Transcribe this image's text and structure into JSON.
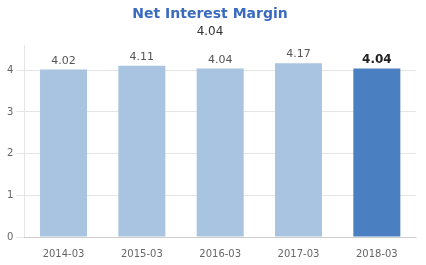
{
  "chart_data": {
    "type": "bar",
    "title": "Net Interest Margin",
    "subtitle": "4.04",
    "categories": [
      "2014-03",
      "2015-03",
      "2016-03",
      "2017-03",
      "2018-03"
    ],
    "values": [
      4.02,
      4.11,
      4.04,
      4.17,
      4.04
    ],
    "colors": [
      "#a8c4e0",
      "#a8c4e0",
      "#a8c4e0",
      "#a8c4e0",
      "#4a7fc1"
    ],
    "ylim": [
      0,
      4.6
    ],
    "yticks": [
      0,
      1,
      2,
      3,
      4
    ],
    "grid": true,
    "data_labels": true
  }
}
